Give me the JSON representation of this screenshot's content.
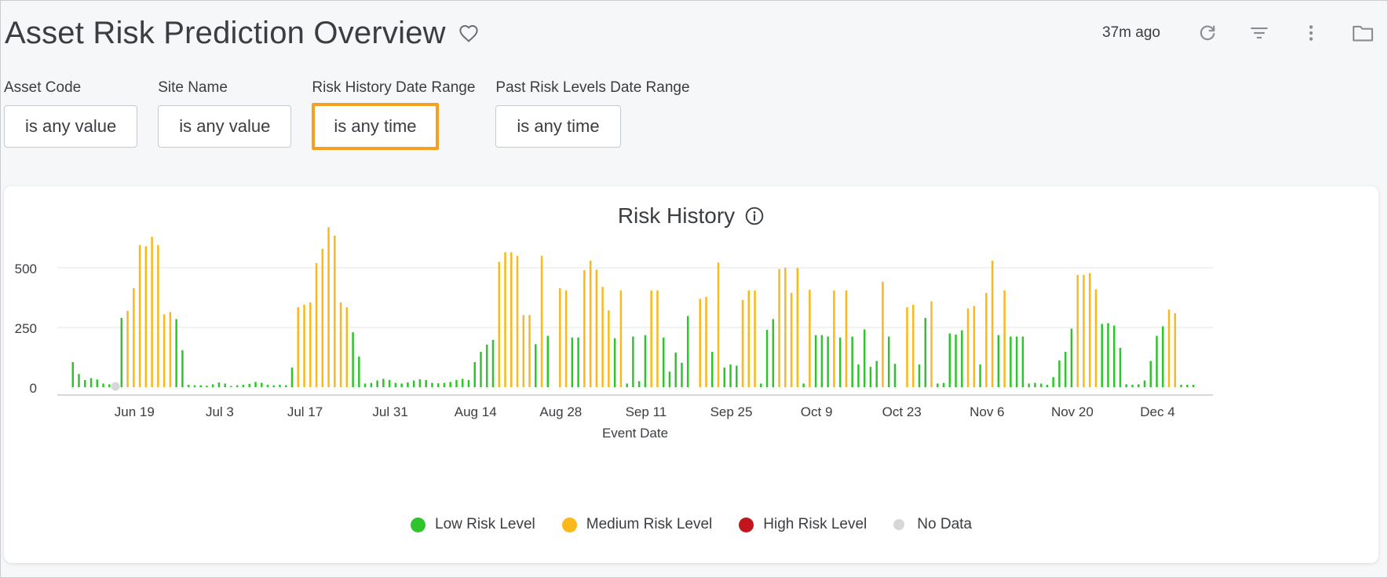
{
  "header": {
    "title": "Asset Risk Prediction Overview",
    "updated": "37m ago",
    "icons": [
      "heart-icon",
      "refresh-icon",
      "filter-icon",
      "more-vert-icon",
      "folder-icon"
    ]
  },
  "filters": [
    {
      "label": "Asset Code",
      "value": "is any value"
    },
    {
      "label": "Site Name",
      "value": "is any value"
    },
    {
      "label": "Risk History Date Range",
      "value": "is any time"
    },
    {
      "label": "Past Risk Levels Date Range",
      "value": "is any time"
    }
  ],
  "chart": {
    "title": "Risk History",
    "legend": [
      {
        "label": "Low Risk Level",
        "color": "#2ec52c"
      },
      {
        "label": "Medium Risk Level",
        "color": "#fbb81b"
      },
      {
        "label": "High Risk Level",
        "color": "#c3161c"
      },
      {
        "label": "No Data",
        "color": "#d6d7d9"
      }
    ]
  },
  "colors": {
    "accent": "#f5a01f",
    "low": "#2ec52c",
    "medium": "#fbb81b",
    "high": "#c3161c",
    "nodata": "#d6d7d9"
  },
  "chart_data": {
    "type": "bar",
    "xlabel": "Event Date",
    "ylabel": "",
    "ylim": [
      0,
      690
    ],
    "yticks": [
      0,
      250,
      500
    ],
    "grid": true,
    "legend_position": "bottom",
    "x_tick_labels": [
      "Jun 19",
      "Jul 3",
      "Jul 17",
      "Jul 31",
      "Aug 14",
      "Aug 28",
      "Sep 11",
      "Sep 25",
      "Oct 9",
      "Oct 23",
      "Nov 6",
      "Nov 20",
      "Dec 4"
    ],
    "x_start": "2023-06-08",
    "x_end": "2023-12-10",
    "bars": [
      {
        "date": "2023-06-09",
        "value": 105,
        "level": "Low"
      },
      {
        "date": "2023-06-10",
        "value": 55,
        "level": "Low"
      },
      {
        "date": "2023-06-11",
        "value": 30,
        "level": "Low"
      },
      {
        "date": "2023-06-12",
        "value": 38,
        "level": "Low"
      },
      {
        "date": "2023-06-13",
        "value": 32,
        "level": "Low"
      },
      {
        "date": "2023-06-14",
        "value": 15,
        "level": "Low"
      },
      {
        "date": "2023-06-15",
        "value": 12,
        "level": "Low"
      },
      {
        "date": "2023-06-16",
        "value": 2,
        "level": "No Data"
      },
      {
        "date": "2023-06-17",
        "value": 290,
        "level": "Low"
      },
      {
        "date": "2023-06-18",
        "value": 320,
        "level": "Medium"
      },
      {
        "date": "2023-06-19",
        "value": 415,
        "level": "Medium"
      },
      {
        "date": "2023-06-20",
        "value": 595,
        "level": "Medium"
      },
      {
        "date": "2023-06-21",
        "value": 590,
        "level": "Medium"
      },
      {
        "date": "2023-06-22",
        "value": 630,
        "level": "Medium"
      },
      {
        "date": "2023-06-23",
        "value": 595,
        "level": "Medium"
      },
      {
        "date": "2023-06-24",
        "value": 305,
        "level": "Medium"
      },
      {
        "date": "2023-06-25",
        "value": 315,
        "level": "Medium"
      },
      {
        "date": "2023-06-26",
        "value": 285,
        "level": "Low"
      },
      {
        "date": "2023-06-27",
        "value": 155,
        "level": "Low"
      },
      {
        "date": "2023-06-28",
        "value": 10,
        "level": "Low"
      },
      {
        "date": "2023-06-29",
        "value": 8,
        "level": "Low"
      },
      {
        "date": "2023-06-30",
        "value": 8,
        "level": "Low"
      },
      {
        "date": "2023-07-01",
        "value": 6,
        "level": "Low"
      },
      {
        "date": "2023-07-02",
        "value": 12,
        "level": "Low"
      },
      {
        "date": "2023-07-03",
        "value": 20,
        "level": "Low"
      },
      {
        "date": "2023-07-04",
        "value": 15,
        "level": "Low"
      },
      {
        "date": "2023-07-05",
        "value": 5,
        "level": "Low"
      },
      {
        "date": "2023-07-06",
        "value": 8,
        "level": "Low"
      },
      {
        "date": "2023-07-07",
        "value": 10,
        "level": "Low"
      },
      {
        "date": "2023-07-08",
        "value": 14,
        "level": "Low"
      },
      {
        "date": "2023-07-09",
        "value": 22,
        "level": "Low"
      },
      {
        "date": "2023-07-10",
        "value": 18,
        "level": "Low"
      },
      {
        "date": "2023-07-11",
        "value": 10,
        "level": "Low"
      },
      {
        "date": "2023-07-12",
        "value": 8,
        "level": "Low"
      },
      {
        "date": "2023-07-13",
        "value": 10,
        "level": "Low"
      },
      {
        "date": "2023-07-14",
        "value": 8,
        "level": "Low"
      },
      {
        "date": "2023-07-15",
        "value": 82,
        "level": "Low"
      },
      {
        "date": "2023-07-16",
        "value": 335,
        "level": "Medium"
      },
      {
        "date": "2023-07-17",
        "value": 345,
        "level": "Medium"
      },
      {
        "date": "2023-07-18",
        "value": 355,
        "level": "Medium"
      },
      {
        "date": "2023-07-19",
        "value": 520,
        "level": "Medium"
      },
      {
        "date": "2023-07-20",
        "value": 580,
        "level": "Medium"
      },
      {
        "date": "2023-07-21",
        "value": 670,
        "level": "Medium"
      },
      {
        "date": "2023-07-22",
        "value": 635,
        "level": "Medium"
      },
      {
        "date": "2023-07-23",
        "value": 355,
        "level": "Medium"
      },
      {
        "date": "2023-07-24",
        "value": 335,
        "level": "Medium"
      },
      {
        "date": "2023-07-25",
        "value": 230,
        "level": "Low"
      },
      {
        "date": "2023-07-26",
        "value": 128,
        "level": "Low"
      },
      {
        "date": "2023-07-27",
        "value": 15,
        "level": "Low"
      },
      {
        "date": "2023-07-28",
        "value": 18,
        "level": "Low"
      },
      {
        "date": "2023-07-29",
        "value": 28,
        "level": "Low"
      },
      {
        "date": "2023-07-30",
        "value": 35,
        "level": "Low"
      },
      {
        "date": "2023-07-31",
        "value": 30,
        "level": "Low"
      },
      {
        "date": "2023-08-01",
        "value": 18,
        "level": "Low"
      },
      {
        "date": "2023-08-02",
        "value": 15,
        "level": "Low"
      },
      {
        "date": "2023-08-03",
        "value": 20,
        "level": "Low"
      },
      {
        "date": "2023-08-04",
        "value": 28,
        "level": "Low"
      },
      {
        "date": "2023-08-05",
        "value": 33,
        "level": "Low"
      },
      {
        "date": "2023-08-06",
        "value": 30,
        "level": "Low"
      },
      {
        "date": "2023-08-07",
        "value": 18,
        "level": "Low"
      },
      {
        "date": "2023-08-08",
        "value": 16,
        "level": "Low"
      },
      {
        "date": "2023-08-09",
        "value": 18,
        "level": "Low"
      },
      {
        "date": "2023-08-10",
        "value": 22,
        "level": "Low"
      },
      {
        "date": "2023-08-11",
        "value": 30,
        "level": "Low"
      },
      {
        "date": "2023-08-12",
        "value": 35,
        "level": "Low"
      },
      {
        "date": "2023-08-13",
        "value": 30,
        "level": "Low"
      },
      {
        "date": "2023-08-14",
        "value": 105,
        "level": "Low"
      },
      {
        "date": "2023-08-15",
        "value": 148,
        "level": "Low"
      },
      {
        "date": "2023-08-16",
        "value": 178,
        "level": "Low"
      },
      {
        "date": "2023-08-17",
        "value": 198,
        "level": "Low"
      },
      {
        "date": "2023-08-18",
        "value": 525,
        "level": "Medium"
      },
      {
        "date": "2023-08-19",
        "value": 565,
        "level": "Medium"
      },
      {
        "date": "2023-08-20",
        "value": 565,
        "level": "Medium"
      },
      {
        "date": "2023-08-21",
        "value": 550,
        "level": "Medium"
      },
      {
        "date": "2023-08-22",
        "value": 302,
        "level": "Medium"
      },
      {
        "date": "2023-08-23",
        "value": 302,
        "level": "Medium"
      },
      {
        "date": "2023-08-24",
        "value": 180,
        "level": "Low"
      },
      {
        "date": "2023-08-25",
        "value": 550,
        "level": "Medium"
      },
      {
        "date": "2023-08-26",
        "value": 215,
        "level": "Low"
      },
      {
        "date": "2023-08-28",
        "value": 415,
        "level": "Medium"
      },
      {
        "date": "2023-08-29",
        "value": 405,
        "level": "Medium"
      },
      {
        "date": "2023-08-30",
        "value": 208,
        "level": "Low"
      },
      {
        "date": "2023-08-31",
        "value": 208,
        "level": "Low"
      },
      {
        "date": "2023-09-01",
        "value": 490,
        "level": "Medium"
      },
      {
        "date": "2023-09-02",
        "value": 530,
        "level": "Medium"
      },
      {
        "date": "2023-09-03",
        "value": 492,
        "level": "Medium"
      },
      {
        "date": "2023-09-04",
        "value": 420,
        "level": "Medium"
      },
      {
        "date": "2023-09-05",
        "value": 322,
        "level": "Medium"
      },
      {
        "date": "2023-09-06",
        "value": 205,
        "level": "Low"
      },
      {
        "date": "2023-09-07",
        "value": 405,
        "level": "Medium"
      },
      {
        "date": "2023-09-08",
        "value": 15,
        "level": "Low"
      },
      {
        "date": "2023-09-09",
        "value": 212,
        "level": "Low"
      },
      {
        "date": "2023-09-10",
        "value": 25,
        "level": "Low"
      },
      {
        "date": "2023-09-11",
        "value": 218,
        "level": "Low"
      },
      {
        "date": "2023-09-12",
        "value": 405,
        "level": "Medium"
      },
      {
        "date": "2023-09-13",
        "value": 405,
        "level": "Medium"
      },
      {
        "date": "2023-09-14",
        "value": 208,
        "level": "Low"
      },
      {
        "date": "2023-09-15",
        "value": 65,
        "level": "Low"
      },
      {
        "date": "2023-09-16",
        "value": 145,
        "level": "Low"
      },
      {
        "date": "2023-09-17",
        "value": 102,
        "level": "Low"
      },
      {
        "date": "2023-09-18",
        "value": 298,
        "level": "Low"
      },
      {
        "date": "2023-09-20",
        "value": 370,
        "level": "Medium"
      },
      {
        "date": "2023-09-21",
        "value": 378,
        "level": "Medium"
      },
      {
        "date": "2023-09-22",
        "value": 148,
        "level": "Low"
      },
      {
        "date": "2023-09-23",
        "value": 522,
        "level": "Medium"
      },
      {
        "date": "2023-09-24",
        "value": 82,
        "level": "Low"
      },
      {
        "date": "2023-09-25",
        "value": 95,
        "level": "Low"
      },
      {
        "date": "2023-09-26",
        "value": 90,
        "level": "Low"
      },
      {
        "date": "2023-09-27",
        "value": 365,
        "level": "Medium"
      },
      {
        "date": "2023-09-28",
        "value": 405,
        "level": "Medium"
      },
      {
        "date": "2023-09-29",
        "value": 405,
        "level": "Medium"
      },
      {
        "date": "2023-09-30",
        "value": 15,
        "level": "Low"
      },
      {
        "date": "2023-10-01",
        "value": 240,
        "level": "Low"
      },
      {
        "date": "2023-10-02",
        "value": 285,
        "level": "Low"
      },
      {
        "date": "2023-10-03",
        "value": 495,
        "level": "Medium"
      },
      {
        "date": "2023-10-04",
        "value": 500,
        "level": "Medium"
      },
      {
        "date": "2023-10-05",
        "value": 395,
        "level": "Medium"
      },
      {
        "date": "2023-10-06",
        "value": 500,
        "level": "Medium"
      },
      {
        "date": "2023-10-07",
        "value": 15,
        "level": "Low"
      },
      {
        "date": "2023-10-08",
        "value": 408,
        "level": "Medium"
      },
      {
        "date": "2023-10-09",
        "value": 218,
        "level": "Low"
      },
      {
        "date": "2023-10-10",
        "value": 218,
        "level": "Low"
      },
      {
        "date": "2023-10-11",
        "value": 212,
        "level": "Low"
      },
      {
        "date": "2023-10-12",
        "value": 405,
        "level": "Medium"
      },
      {
        "date": "2023-10-13",
        "value": 208,
        "level": "Low"
      },
      {
        "date": "2023-10-14",
        "value": 405,
        "level": "Medium"
      },
      {
        "date": "2023-10-15",
        "value": 212,
        "level": "Low"
      },
      {
        "date": "2023-10-16",
        "value": 95,
        "level": "Low"
      },
      {
        "date": "2023-10-17",
        "value": 242,
        "level": "Low"
      },
      {
        "date": "2023-10-18",
        "value": 85,
        "level": "Low"
      },
      {
        "date": "2023-10-19",
        "value": 110,
        "level": "Low"
      },
      {
        "date": "2023-10-20",
        "value": 442,
        "level": "Medium"
      },
      {
        "date": "2023-10-21",
        "value": 212,
        "level": "Low"
      },
      {
        "date": "2023-10-22",
        "value": 98,
        "level": "Low"
      },
      {
        "date": "2023-10-24",
        "value": 335,
        "level": "Medium"
      },
      {
        "date": "2023-10-25",
        "value": 345,
        "level": "Medium"
      },
      {
        "date": "2023-10-26",
        "value": 95,
        "level": "Low"
      },
      {
        "date": "2023-10-27",
        "value": 290,
        "level": "Low"
      },
      {
        "date": "2023-10-28",
        "value": 360,
        "level": "Medium"
      },
      {
        "date": "2023-10-29",
        "value": 15,
        "level": "Low"
      },
      {
        "date": "2023-10-30",
        "value": 18,
        "level": "Low"
      },
      {
        "date": "2023-10-31",
        "value": 225,
        "level": "Low"
      },
      {
        "date": "2023-11-01",
        "value": 220,
        "level": "Low"
      },
      {
        "date": "2023-11-02",
        "value": 238,
        "level": "Low"
      },
      {
        "date": "2023-11-03",
        "value": 330,
        "level": "Medium"
      },
      {
        "date": "2023-11-04",
        "value": 340,
        "level": "Medium"
      },
      {
        "date": "2023-11-05",
        "value": 95,
        "level": "Low"
      },
      {
        "date": "2023-11-06",
        "value": 395,
        "level": "Medium"
      },
      {
        "date": "2023-11-07",
        "value": 530,
        "level": "Medium"
      },
      {
        "date": "2023-11-08",
        "value": 218,
        "level": "Low"
      },
      {
        "date": "2023-11-09",
        "value": 405,
        "level": "Medium"
      },
      {
        "date": "2023-11-10",
        "value": 212,
        "level": "Low"
      },
      {
        "date": "2023-11-11",
        "value": 212,
        "level": "Low"
      },
      {
        "date": "2023-11-12",
        "value": 212,
        "level": "Low"
      },
      {
        "date": "2023-11-13",
        "value": 15,
        "level": "Low"
      },
      {
        "date": "2023-11-14",
        "value": 18,
        "level": "Low"
      },
      {
        "date": "2023-11-15",
        "value": 15,
        "level": "Low"
      },
      {
        "date": "2023-11-16",
        "value": 10,
        "level": "Low"
      },
      {
        "date": "2023-11-17",
        "value": 42,
        "level": "Low"
      },
      {
        "date": "2023-11-18",
        "value": 112,
        "level": "Low"
      },
      {
        "date": "2023-11-19",
        "value": 148,
        "level": "Low"
      },
      {
        "date": "2023-11-20",
        "value": 245,
        "level": "Low"
      },
      {
        "date": "2023-11-21",
        "value": 470,
        "level": "Medium"
      },
      {
        "date": "2023-11-22",
        "value": 470,
        "level": "Medium"
      },
      {
        "date": "2023-11-23",
        "value": 478,
        "level": "Medium"
      },
      {
        "date": "2023-11-24",
        "value": 410,
        "level": "Medium"
      },
      {
        "date": "2023-11-25",
        "value": 265,
        "level": "Low"
      },
      {
        "date": "2023-11-26",
        "value": 268,
        "level": "Low"
      },
      {
        "date": "2023-11-27",
        "value": 258,
        "level": "Low"
      },
      {
        "date": "2023-11-28",
        "value": 165,
        "level": "Low"
      },
      {
        "date": "2023-11-29",
        "value": 12,
        "level": "Low"
      },
      {
        "date": "2023-11-30",
        "value": 10,
        "level": "Low"
      },
      {
        "date": "2023-12-01",
        "value": 12,
        "level": "Low"
      },
      {
        "date": "2023-12-02",
        "value": 28,
        "level": "Low"
      },
      {
        "date": "2023-12-03",
        "value": 110,
        "level": "Low"
      },
      {
        "date": "2023-12-04",
        "value": 215,
        "level": "Low"
      },
      {
        "date": "2023-12-05",
        "value": 255,
        "level": "Low"
      },
      {
        "date": "2023-12-06",
        "value": 325,
        "level": "Medium"
      },
      {
        "date": "2023-12-07",
        "value": 310,
        "level": "Medium"
      },
      {
        "date": "2023-12-08",
        "value": 10,
        "level": "Low"
      },
      {
        "date": "2023-12-09",
        "value": 10,
        "level": "Low"
      },
      {
        "date": "2023-12-10",
        "value": 10,
        "level": "Low"
      }
    ]
  }
}
